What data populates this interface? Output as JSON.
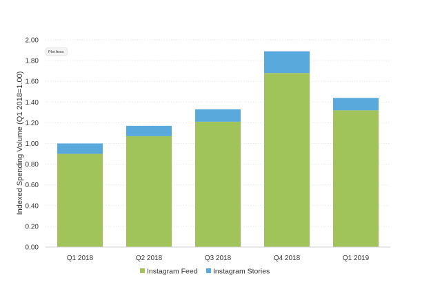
{
  "chart_data": {
    "type": "bar",
    "stacked": true,
    "categories": [
      "Q1 2018",
      "Q2 2018",
      "Q3 2018",
      "Q4 2018",
      "Q1 2019"
    ],
    "series": [
      {
        "name": "Instagram Feed",
        "color": "#a0c35a",
        "values": [
          0.9,
          1.07,
          1.21,
          1.68,
          1.32
        ]
      },
      {
        "name": "Instagram Stories",
        "color": "#5aa9dd",
        "values": [
          0.1,
          0.1,
          0.12,
          0.21,
          0.12
        ]
      }
    ],
    "ylabel": "Indexed Spending Volume (Q1 2018=1.00)",
    "xlabel": "",
    "ylim": [
      0,
      2.0
    ],
    "yticks": [
      "0.00",
      "0.20",
      "0.40",
      "0.60",
      "0.80",
      "1.00",
      "1.20",
      "1.40",
      "1.60",
      "1.80",
      "2.00"
    ],
    "grid": true,
    "legend_position": "bottom",
    "plot_area_label": "Plot Area"
  }
}
